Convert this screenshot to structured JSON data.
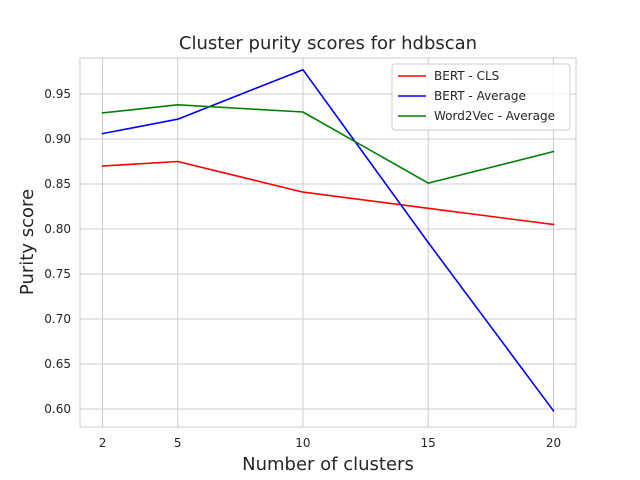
{
  "chart_data": {
    "type": "line",
    "title": "Cluster purity scores for hdbscan",
    "xlabel": "Number of clusters",
    "ylabel": "Purity score",
    "x": [
      2,
      5,
      10,
      15,
      20
    ],
    "x_ticks": [
      "2",
      "5",
      "10",
      "15",
      "20"
    ],
    "y_ticks": [
      "0.60",
      "0.65",
      "0.70",
      "0.75",
      "0.80",
      "0.85",
      "0.90",
      "0.95"
    ],
    "xlim": [
      1.1,
      20.9
    ],
    "ylim": [
      0.58,
      0.99
    ],
    "grid": true,
    "legend_position": "top-right",
    "series": [
      {
        "name": "BERT - CLS",
        "color": "#ff0000",
        "values": [
          0.87,
          0.875,
          0.841,
          0.823,
          0.805
        ]
      },
      {
        "name": "BERT - Average",
        "color": "#0000ff",
        "values": [
          0.906,
          0.922,
          0.977,
          0.785,
          0.598
        ]
      },
      {
        "name": "Word2Vec - Average",
        "color": "#008000",
        "values": [
          0.929,
          0.938,
          0.93,
          0.851,
          0.886
        ]
      }
    ]
  }
}
